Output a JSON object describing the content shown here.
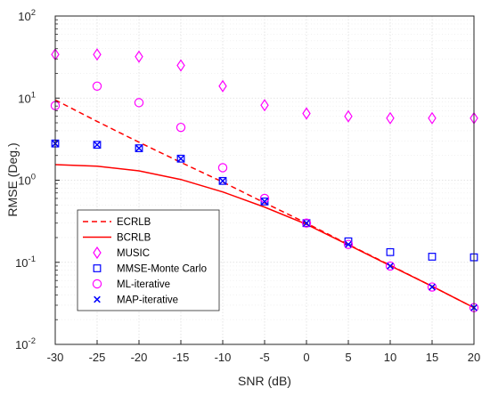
{
  "chart_data": {
    "type": "line",
    "xlabel": "SNR (dB)",
    "ylabel": "RMSE (Deg.)",
    "xlim": [
      -30,
      20
    ],
    "ylim": [
      0.01,
      100
    ],
    "yscale": "log",
    "grid": true,
    "legend_position": "bottom-left",
    "x_ticks": [
      "-30",
      "-25",
      "-20",
      "-15",
      "-10",
      "-5",
      "0",
      "5",
      "10",
      "15",
      "20"
    ],
    "y_ticks": [
      {
        "base": "10",
        "exp": "-2"
      },
      {
        "base": "10",
        "exp": "-1"
      },
      {
        "base": "10",
        "exp": "0"
      },
      {
        "base": "10",
        "exp": "1"
      },
      {
        "base": "10",
        "exp": "2"
      }
    ],
    "series": [
      {
        "name": "ECRLB",
        "style": "dashed-line",
        "color": "#ff0000",
        "x": [
          -30,
          -25,
          -20,
          -15,
          -10,
          -5,
          0,
          5,
          10,
          15,
          20
        ],
        "y": [
          9.5,
          5.2,
          2.9,
          1.65,
          0.95,
          0.53,
          0.3,
          0.165,
          0.092,
          0.051,
          0.028
        ]
      },
      {
        "name": "BCRLB",
        "style": "solid-line",
        "color": "#ff0000",
        "x": [
          -30,
          -25,
          -20,
          -15,
          -10,
          -5,
          0,
          5,
          10,
          15,
          20
        ],
        "y": [
          1.55,
          1.48,
          1.3,
          1.02,
          0.72,
          0.47,
          0.29,
          0.163,
          0.091,
          0.051,
          0.028
        ]
      },
      {
        "name": "MUSIC",
        "style": "diamond-marker",
        "color": "#ff00ff",
        "x": [
          -30,
          -25,
          -20,
          -15,
          -10,
          -5,
          0,
          5,
          10,
          15,
          20
        ],
        "y": [
          34,
          34,
          32,
          25,
          14,
          8.2,
          6.5,
          6.0,
          5.7,
          5.7,
          5.7
        ]
      },
      {
        "name": "MMSE-Monte Carlo",
        "style": "square-marker",
        "color": "#0000ff",
        "x": [
          -30,
          -25,
          -20,
          -15,
          -10,
          -5,
          0,
          5,
          10,
          15,
          20
        ],
        "y": [
          2.8,
          2.7,
          2.45,
          1.83,
          0.98,
          0.55,
          0.3,
          0.18,
          0.133,
          0.117,
          0.115
        ]
      },
      {
        "name": "ML-iterative",
        "style": "circle-marker",
        "color": "#ff00ff",
        "x": [
          -30,
          -25,
          -20,
          -15,
          -10,
          -5,
          0,
          5,
          10,
          15,
          20
        ],
        "y": [
          8.1,
          14,
          8.8,
          4.4,
          1.42,
          0.6,
          0.3,
          0.165,
          0.09,
          0.05,
          0.028
        ]
      },
      {
        "name": "MAP-iterative",
        "style": "x-marker",
        "color": "#0000ff",
        "x": [
          -30,
          -25,
          -20,
          -15,
          -10,
          -5,
          0,
          5,
          10,
          15,
          20
        ],
        "y": [
          2.8,
          2.7,
          2.45,
          1.83,
          0.98,
          0.55,
          0.3,
          0.165,
          0.09,
          0.05,
          0.028
        ]
      }
    ]
  }
}
